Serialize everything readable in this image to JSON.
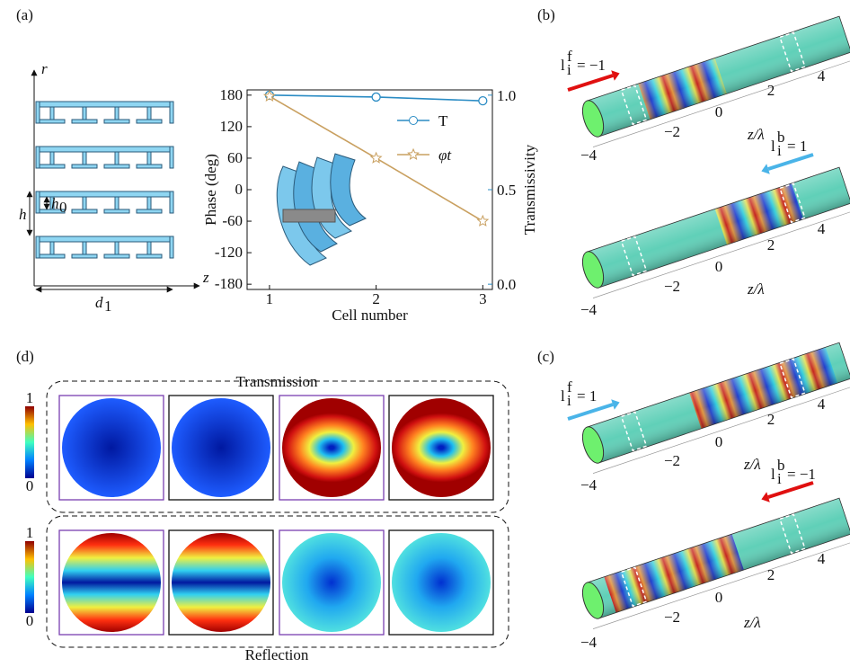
{
  "panel_labels": [
    "(a)",
    "(b)",
    "(c)",
    "(d)"
  ],
  "schematic": {
    "r": "r",
    "z": "z",
    "h": "h",
    "h0": {
      "base": "h",
      "sub": "0"
    },
    "d1": {
      "base": "d",
      "sub": "1"
    }
  },
  "chart_data": {
    "type": "line",
    "xlabel": "Cell number",
    "ylabel": "Phase (deg)",
    "y2label": "Transmissivity",
    "x": [
      1,
      2,
      3
    ],
    "xlim": [
      0.79,
      3.09
    ],
    "xticks": [
      1,
      2,
      3
    ],
    "ylim": [
      -190,
      190
    ],
    "yticks": [
      180,
      120,
      60,
      0,
      -60,
      -120,
      -180
    ],
    "y2lim": [
      -0.0278,
      1.0278
    ],
    "y2ticks": [
      {
        "value": 0,
        "label": "0.0"
      },
      0.5,
      {
        "value": 1,
        "label": "1.0"
      }
    ],
    "series": [
      {
        "name": "T",
        "color": "#2b8cc4",
        "axis": "y2",
        "marker": "circle",
        "values": [
          1.0,
          0.99,
          0.97
        ]
      },
      {
        "name": "φt",
        "color": "#c9a060",
        "marker": "star",
        "values": [
          178,
          60,
          -60
        ]
      }
    ]
  },
  "simulations": [
    {
      "beam": {
        "base": "l",
        "sub": "i",
        "sup": "f",
        "rhs": "= −1"
      },
      "axis_label": "z/λ",
      "ticks": [
        "−4",
        "−2",
        "0",
        "2",
        "4"
      ]
    },
    {
      "beam": {
        "base": "l",
        "sub": "i",
        "sup": "b",
        "rhs": "= 1"
      },
      "axis_label": "z/λ",
      "ticks": [
        "−4",
        "−2",
        "0",
        "2",
        "4"
      ]
    },
    {
      "beam": {
        "base": "l",
        "sub": "i",
        "sup": "f",
        "rhs": "= 1"
      },
      "axis_label": "z/λ",
      "ticks": [
        "−4",
        "−2",
        "0",
        "2",
        "4"
      ]
    },
    {
      "beam": {
        "base": "l",
        "sub": "i",
        "sup": "b",
        "rhs": "= −1"
      },
      "axis_label": "z/λ",
      "ticks": [
        "−4",
        "−2",
        "0",
        "2",
        "4"
      ]
    }
  ],
  "maps": {
    "transmission": "Transmission",
    "reflection": "Reflection",
    "colorbar": {
      "max": "1",
      "min": "0"
    }
  }
}
